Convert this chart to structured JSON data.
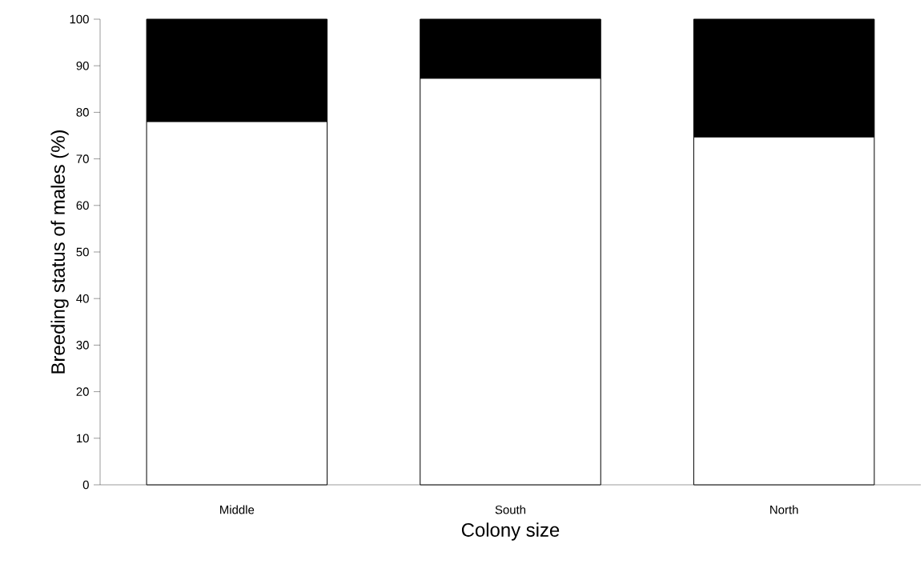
{
  "chart_data": {
    "type": "bar",
    "stacked": true,
    "xlabel": "Colony size",
    "ylabel": "Breeding status of males (%)",
    "categories": [
      "Middle",
      "South",
      "North"
    ],
    "series": [
      {
        "color": "#ffffff",
        "values": [
          78,
          87.3,
          74.7
        ]
      },
      {
        "color": "#000000",
        "values": [
          22,
          12.7,
          25.3
        ]
      }
    ],
    "ylim": [
      0,
      100
    ],
    "yticks": [
      0,
      10,
      20,
      30,
      40,
      50,
      60,
      70,
      80,
      90,
      100
    ],
    "grid": false
  }
}
